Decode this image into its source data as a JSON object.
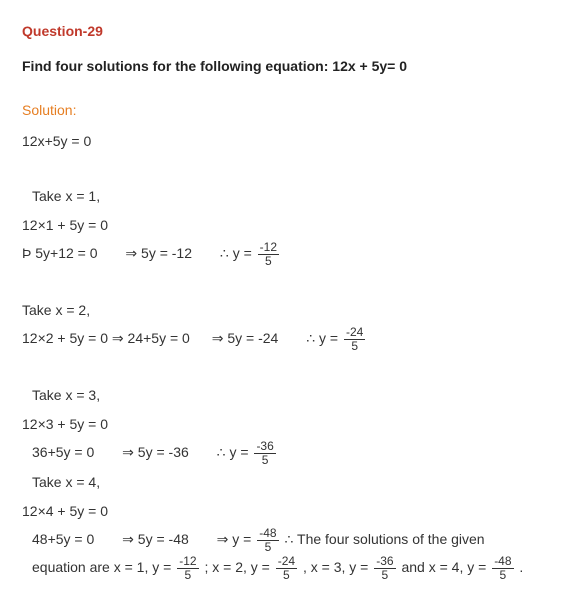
{
  "colors": {
    "heading": "#c0392b",
    "question": "#222222",
    "solution_label": "#e67e22",
    "body": "#333333"
  },
  "question_number": "Question-29",
  "question_text": "Find four solutions for the following equation: 12x + 5y= 0",
  "solution_label": "Solution:",
  "eq_initial": "12x+5y = 0",
  "case1": {
    "take": "Take x = 1,",
    "sub": "12×1 + 5y = 0",
    "line_a": "Þ 5y+12 = 0",
    "line_b": "⇒ 5y = -12",
    "therefore": "∴ y = ",
    "frac_num": "-12",
    "frac_den": "5"
  },
  "case2": {
    "take": "Take x = 2,",
    "sub_a": "12×2 + 5y = 0",
    "sub_b": "⇒ 24+5y = 0",
    "sub_c": "⇒ 5y = -24",
    "therefore": "∴ y = ",
    "frac_num": "-24",
    "frac_den": "5"
  },
  "case3": {
    "take": "Take x = 3,",
    "sub": "12×3 + 5y = 0",
    "line_a": "36+5y = 0",
    "line_b": "⇒ 5y = -36",
    "therefore": "∴ y = ",
    "frac_num": "-36",
    "frac_den": "5"
  },
  "case4": {
    "take": "Take x = 4,",
    "sub": "12×4 + 5y = 0",
    "line_a": "48+5y = 0",
    "line_b": "⇒ 5y = -48",
    "line_c": "⇒ y = ",
    "frac_num": "-48",
    "frac_den": "5"
  },
  "conclusion_pre": "∴ The four solutions of the given equation are x = 1, y = ",
  "conclusion_p2": " ; x = 2, y = ",
  "conclusion_p3": " , x = 3, y = ",
  "conclusion_p4": "  and x = 4, y = ",
  "period": " ."
}
